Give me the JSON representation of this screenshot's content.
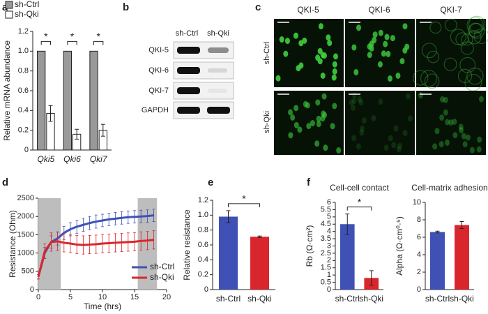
{
  "panel_labels": [
    "a",
    "b",
    "c",
    "d",
    "e",
    "f"
  ],
  "blot": {
    "columns": [
      "sh-Ctrl",
      "sh-Qki"
    ],
    "rows": [
      "QKI-5",
      "QKI-6",
      "QKI-7",
      "GAPDH"
    ]
  },
  "microscopy": {
    "columns": [
      "QKI-5",
      "QKI-6",
      "QKI-7"
    ],
    "rows": [
      "sh-Ctrl",
      "sh-Qki"
    ]
  },
  "chart_data": [
    {
      "type": "bar",
      "categories": [
        "Qki5",
        "Qki6",
        "Qki7"
      ],
      "ylabel": "Relative mRNA abundance",
      "series": [
        {
          "name": "sh-Ctrl",
          "color": "#999999",
          "values": [
            1,
            1,
            1
          ]
        },
        {
          "name": "sh-Qki",
          "color": "#ffffff",
          "values": [
            0.37,
            0.16,
            0.2
          ],
          "errors": [
            0.08,
            0.05,
            0.06
          ]
        }
      ],
      "ylim": [
        0,
        1.2
      ],
      "yticks": [
        0,
        0.2,
        0.4,
        0.6,
        0.8,
        {
          "value": 1,
          "label": "1.0"
        },
        1.2
      ],
      "significance": [
        "*",
        "*",
        "*"
      ],
      "legend": "top left"
    },
    {
      "type": "line",
      "xlabel": "Time (hrs)",
      "ylabel": "Resistance (Ohm)",
      "x": [
        0,
        1,
        2,
        3,
        4,
        5,
        6,
        7,
        8,
        9,
        10,
        11,
        12,
        13,
        14,
        15,
        16,
        17,
        18
      ],
      "series": [
        {
          "name": "sh-Ctrl",
          "color": "#3f51b5",
          "values": [
            350,
            1000,
            1300,
            1400,
            1550,
            1650,
            1720,
            1770,
            1820,
            1860,
            1890,
            1920,
            1940,
            1960,
            1980,
            1990,
            2000,
            2010,
            2030
          ],
          "errors": [
            60,
            150,
            170,
            180,
            180,
            180,
            180,
            180,
            180,
            180,
            170,
            170,
            170,
            170,
            170,
            170,
            170,
            170,
            170
          ]
        },
        {
          "name": "sh-Qki",
          "color": "#d9262c",
          "values": [
            350,
            1050,
            1300,
            1320,
            1280,
            1260,
            1230,
            1220,
            1230,
            1240,
            1260,
            1270,
            1280,
            1290,
            1300,
            1310,
            1330,
            1340,
            1360
          ],
          "errors": [
            60,
            200,
            250,
            250,
            250,
            250,
            250,
            250,
            250,
            250,
            250,
            250,
            250,
            250,
            250,
            250,
            250,
            250,
            250
          ]
        }
      ],
      "xlim": [
        0,
        20
      ],
      "xticks": [
        0,
        5,
        10,
        15,
        20
      ],
      "ylim": [
        0,
        2500
      ],
      "yticks": [
        0,
        500,
        1000,
        1500,
        2000,
        2500
      ],
      "shaded": [
        [
          0,
          3.5
        ],
        [
          15.5,
          18.5
        ]
      ],
      "legend": "lower right"
    },
    {
      "type": "bar",
      "ylabel": "Relative resistance",
      "categories": [
        "sh-Ctrl",
        "sh-Qki"
      ],
      "values": [
        0.98,
        0.71
      ],
      "errors": [
        0.08,
        0.01
      ],
      "colors": [
        "#3f51b5",
        "#d9262c"
      ],
      "ylim": [
        0,
        1.2
      ],
      "yticks": [
        0,
        0.2,
        0.4,
        0.6,
        0.8,
        {
          "value": 1,
          "label": "1.0"
        },
        1.2
      ],
      "significance": "*"
    },
    {
      "type": "bar",
      "title": "Cell-cell contact",
      "ylabel": "Rb (Ω·cm²)",
      "categories": [
        "sh-Ctrl",
        "sh-Qki"
      ],
      "values": [
        4.5,
        0.8
      ],
      "errors": [
        0.7,
        0.5
      ],
      "colors": [
        "#3f51b5",
        "#d9262c"
      ],
      "ylim": [
        0,
        6
      ],
      "yticks": [
        0,
        0.5,
        1,
        1.5,
        2,
        2.5,
        3,
        3.5,
        4,
        4.5,
        5,
        5.5,
        6
      ],
      "significance": "*"
    },
    {
      "type": "bar",
      "title": "Cell-matrix adhesion",
      "ylabel": "Alpha (Ω·cm⁰·⁵)",
      "categories": [
        "sh-Ctrl",
        "sh-Qki"
      ],
      "values": [
        6.6,
        7.4
      ],
      "errors": [
        0.1,
        0.4
      ],
      "colors": [
        "#3f51b5",
        "#d9262c"
      ],
      "ylim": [
        0,
        10
      ],
      "yticks": [
        0,
        2,
        4,
        6,
        8,
        10
      ]
    }
  ]
}
